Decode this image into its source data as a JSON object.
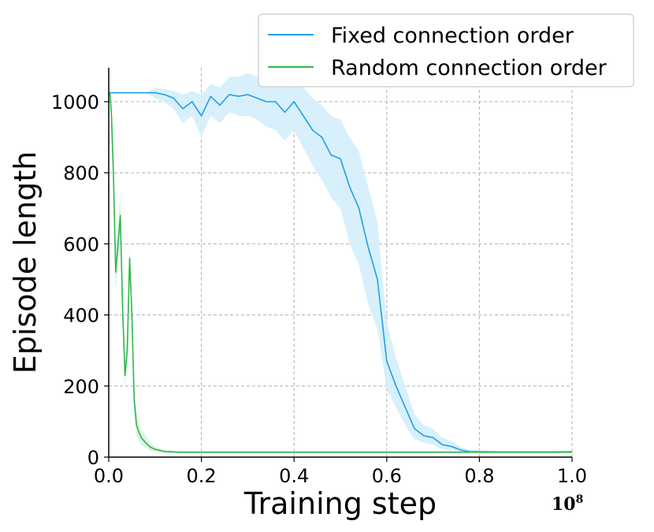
{
  "chart_data": {
    "type": "line",
    "title": "",
    "xlabel": "Training step",
    "ylabel": "Episode length",
    "x_scale_label": "10",
    "x_scale_exponent": "8",
    "xlim": [
      0.0,
      1.0
    ],
    "ylim": [
      0,
      1000
    ],
    "xticks": [
      "0.0",
      "0.2",
      "0.4",
      "0.6",
      "0.8",
      "1.0"
    ],
    "yticks": [
      "0",
      "200",
      "400",
      "600",
      "800",
      "1000"
    ],
    "grid": true,
    "legend_placement": "top-right",
    "series": [
      {
        "name": "Fixed connection order",
        "color": "#1f9fe8",
        "band_color": "#d4eefb",
        "x": [
          0.0,
          0.02,
          0.04,
          0.06,
          0.08,
          0.1,
          0.12,
          0.14,
          0.16,
          0.18,
          0.2,
          0.22,
          0.24,
          0.26,
          0.28,
          0.3,
          0.32,
          0.34,
          0.36,
          0.38,
          0.4,
          0.42,
          0.44,
          0.46,
          0.48,
          0.5,
          0.52,
          0.54,
          0.56,
          0.58,
          0.6,
          0.62,
          0.64,
          0.66,
          0.68,
          0.7,
          0.72,
          0.74,
          0.76,
          0.78,
          0.8,
          0.85,
          0.9,
          0.95,
          1.0
        ],
        "y": [
          1025,
          1025,
          1025,
          1025,
          1025,
          1025,
          1020,
          1010,
          980,
          1000,
          960,
          1015,
          990,
          1020,
          1015,
          1020,
          1010,
          1000,
          1000,
          970,
          1000,
          960,
          920,
          900,
          850,
          840,
          760,
          700,
          590,
          500,
          270,
          200,
          140,
          80,
          60,
          55,
          35,
          30,
          20,
          15,
          15,
          14,
          14,
          14,
          15
        ],
        "lower": [
          1025,
          1025,
          1025,
          1025,
          1025,
          1010,
          1000,
          980,
          940,
          960,
          900,
          960,
          940,
          970,
          960,
          960,
          950,
          930,
          920,
          890,
          920,
          870,
          820,
          780,
          730,
          700,
          600,
          540,
          430,
          360,
          190,
          140,
          90,
          50,
          40,
          35,
          22,
          20,
          14,
          12,
          12,
          11,
          11,
          11,
          12
        ],
        "upper": [
          1025,
          1025,
          1025,
          1025,
          1025,
          1040,
          1035,
          1030,
          1020,
          1030,
          1020,
          1050,
          1040,
          1070,
          1070,
          1080,
          1070,
          1070,
          1080,
          1060,
          1070,
          1040,
          1010,
          990,
          960,
          950,
          900,
          860,
          760,
          660,
          380,
          280,
          200,
          120,
          90,
          80,
          55,
          45,
          28,
          20,
          20,
          18,
          18,
          18,
          19
        ]
      },
      {
        "name": "Random connection order",
        "color": "#2db84d",
        "band_color": "#dcf3e1",
        "x": [
          0.0,
          0.003,
          0.006,
          0.01,
          0.015,
          0.02,
          0.025,
          0.03,
          0.035,
          0.04,
          0.045,
          0.05,
          0.055,
          0.06,
          0.065,
          0.07,
          0.08,
          0.09,
          0.1,
          0.12,
          0.15,
          0.2,
          0.3,
          0.4,
          0.5,
          0.6,
          0.7,
          0.8,
          0.9,
          1.0
        ],
        "y": [
          1025,
          1020,
          960,
          800,
          520,
          600,
          680,
          420,
          230,
          300,
          560,
          400,
          160,
          90,
          70,
          55,
          40,
          28,
          22,
          16,
          14,
          14,
          14,
          14,
          14,
          14,
          14,
          14,
          14,
          14
        ],
        "lower": [
          1025,
          1010,
          920,
          740,
          470,
          540,
          620,
          360,
          200,
          260,
          510,
          350,
          120,
          60,
          45,
          35,
          25,
          18,
          15,
          12,
          11,
          11,
          11,
          11,
          11,
          11,
          11,
          11,
          11,
          11
        ],
        "upper": [
          1025,
          1030,
          1000,
          860,
          580,
          660,
          740,
          480,
          270,
          350,
          600,
          450,
          200,
          130,
          100,
          80,
          60,
          40,
          30,
          20,
          17,
          17,
          17,
          17,
          17,
          17,
          17,
          17,
          17,
          17
        ]
      }
    ]
  }
}
